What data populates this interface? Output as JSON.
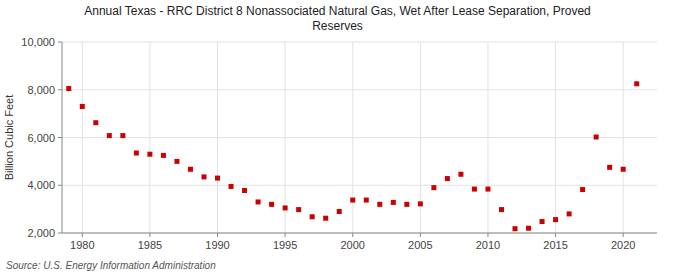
{
  "chart_data": {
    "type": "scatter",
    "title": "Annual Texas - RRC District 8 Nonassociated Natural Gas, Wet After Lease Separation, Proved\nReserves",
    "ylabel": "Billion Cubic Feet",
    "annotations": [
      "Source: U.S. Energy Information Administration"
    ],
    "x": [
      1979,
      1980,
      1981,
      1982,
      1983,
      1984,
      1985,
      1986,
      1987,
      1988,
      1989,
      1990,
      1991,
      1992,
      1993,
      1994,
      1995,
      1996,
      1997,
      1998,
      1999,
      2000,
      2001,
      2002,
      2003,
      2004,
      2005,
      2006,
      2007,
      2008,
      2009,
      2010,
      2011,
      2012,
      2013,
      2014,
      2015,
      2016,
      2017,
      2018,
      2019,
      2020,
      2021
    ],
    "values": [
      8050,
      7300,
      6620,
      6080,
      6080,
      5350,
      5300,
      5250,
      5000,
      4670,
      4350,
      4300,
      3950,
      3780,
      3300,
      3200,
      3050,
      2980,
      2680,
      2620,
      2900,
      3380,
      3380,
      3200,
      3280,
      3200,
      3220,
      3900,
      4280,
      4460,
      3840,
      3840,
      2980,
      2180,
      2200,
      2480,
      2560,
      2800,
      3820,
      6020,
      4750,
      4670,
      8250
    ],
    "color": "#cc0000",
    "marker": "square",
    "grid": true,
    "xlim": [
      1978.5,
      2022.5
    ],
    "xticks": [
      1980,
      1985,
      1990,
      1995,
      2000,
      2005,
      2010,
      2015,
      2020
    ],
    "ylim": [
      2000,
      10000
    ],
    "yticks": [
      {
        "value": 2000,
        "label": "2,000"
      },
      {
        "value": 4000,
        "label": "4,000"
      },
      {
        "value": 6000,
        "label": "6,000"
      },
      {
        "value": 8000,
        "label": "8,000"
      },
      {
        "value": 10000,
        "label": "10,000"
      }
    ]
  }
}
